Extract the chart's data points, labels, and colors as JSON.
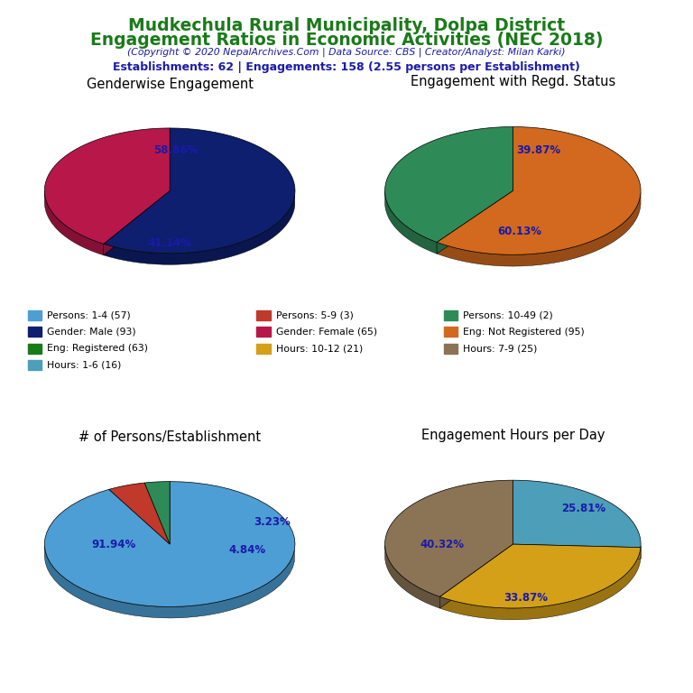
{
  "title_line1": "Mudkechula Rural Municipality, Dolpa District",
  "title_line2": "Engagement Ratios in Economic Activities (NEC 2018)",
  "subtitle": "(Copyright © 2020 NepalArchives.Com | Data Source: CBS | Creator/Analyst: Milan Karki)",
  "stats_line": "Establishments: 62 | Engagements: 158 (2.55 persons per Establishment)",
  "title_color": "#1a7a1a",
  "subtitle_color": "#1a1aaa",
  "stats_color": "#1a1aaa",
  "pie1_title": "Genderwise Engagement",
  "pie1_values": [
    93,
    65
  ],
  "pie1_colors": [
    "#0d1f6e",
    "#b8174a"
  ],
  "pie1_labels": [
    "58.86%",
    "41.14%"
  ],
  "pie2_title": "Engagement with Regd. Status",
  "pie2_values": [
    95,
    63
  ],
  "pie2_colors": [
    "#d2691e",
    "#2e8b57"
  ],
  "pie2_labels": [
    "60.13%",
    "39.87%"
  ],
  "pie3_title": "# of Persons/Establishment",
  "pie3_values": [
    57,
    3,
    2
  ],
  "pie3_colors": [
    "#4d9ed4",
    "#c0392b",
    "#2e8b57"
  ],
  "pie3_labels": [
    "91.94%",
    "4.84%",
    "3.23%"
  ],
  "pie4_title": "Engagement Hours per Day",
  "pie4_values": [
    16,
    21,
    25
  ],
  "pie4_colors": [
    "#4d9eb8",
    "#d4a017",
    "#8b7355"
  ],
  "pie4_labels": [
    "25.81%",
    "33.87%",
    "40.32%"
  ],
  "legend_items": [
    {
      "label": "Persons: 1-4 (57)",
      "color": "#4d9ed4"
    },
    {
      "label": "Persons: 5-9 (3)",
      "color": "#c0392b"
    },
    {
      "label": "Persons: 10-49 (2)",
      "color": "#2e8b57"
    },
    {
      "label": "Gender: Male (93)",
      "color": "#0d1f6e"
    },
    {
      "label": "Gender: Female (65)",
      "color": "#b8174a"
    },
    {
      "label": "Eng: Not Registered (95)",
      "color": "#d2691e"
    },
    {
      "label": "Eng: Registered (63)",
      "color": "#1a7a1a"
    },
    {
      "label": "Hours: 10-12 (21)",
      "color": "#d4a017"
    },
    {
      "label": "Hours: 7-9 (25)",
      "color": "#8b7355"
    },
    {
      "label": "Hours: 1-6 (16)",
      "color": "#4d9eb8"
    }
  ],
  "tilt": 0.5,
  "depth": 0.09
}
